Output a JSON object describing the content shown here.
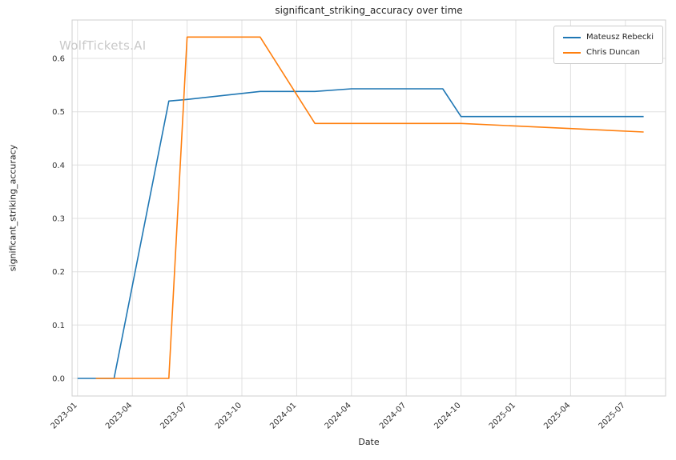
{
  "chart_data": {
    "type": "line",
    "title": "significant_striking_accuracy over time",
    "xlabel": "Date",
    "ylabel": "significant_striking_accuracy",
    "watermark": "WolfTickets.AI",
    "grid": true,
    "legend_position": "upper right",
    "xlim_months": [
      -0.3,
      32.2
    ],
    "ylim": [
      -0.033,
      0.672
    ],
    "xticks": [
      "2023-01",
      "2023-04",
      "2023-07",
      "2023-10",
      "2024-01",
      "2024-04",
      "2024-07",
      "2024-10",
      "2025-01",
      "2025-04",
      "2025-07"
    ],
    "yticks": [
      0.0,
      0.1,
      0.2,
      0.3,
      0.4,
      0.5,
      0.6
    ],
    "series": [
      {
        "name": "Mateusz Rebecki",
        "color": "#1f77b4",
        "points": [
          [
            "2023-01",
            0.0
          ],
          [
            "2023-03",
            0.0
          ],
          [
            "2023-06",
            0.52
          ],
          [
            "2023-07",
            0.523
          ],
          [
            "2023-11",
            0.538
          ],
          [
            "2024-02",
            0.538
          ],
          [
            "2024-04",
            0.543
          ],
          [
            "2024-09",
            0.543
          ],
          [
            "2024-10",
            0.491
          ],
          [
            "2025-08",
            0.491
          ]
        ]
      },
      {
        "name": "Chris Duncan",
        "color": "#ff7f0e",
        "points": [
          [
            "2023-02",
            0.0
          ],
          [
            "2023-06",
            0.0
          ],
          [
            "2023-07",
            0.64
          ],
          [
            "2023-11",
            0.64
          ],
          [
            "2024-02",
            0.478
          ],
          [
            "2024-10",
            0.478
          ],
          [
            "2025-08",
            0.462
          ]
        ]
      }
    ]
  }
}
